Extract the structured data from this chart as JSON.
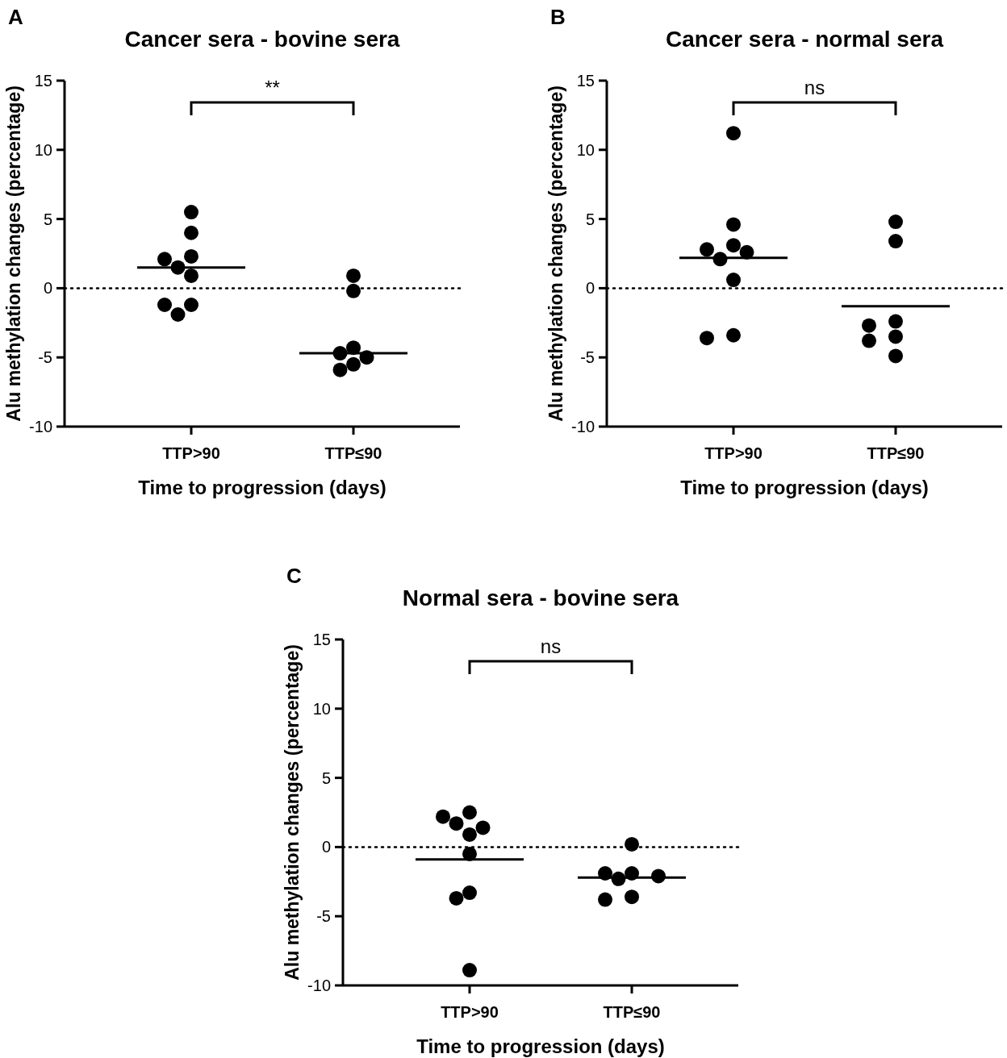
{
  "chart_data": [
    {
      "type": "scatter",
      "title": "Cancer sera - bovine sera",
      "xlabel": "Time to progression (days)",
      "ylabel": "Alu methylation changes (percentage)",
      "categories": [
        "TTP>90",
        "TTP≤90"
      ],
      "ylim": [
        -10,
        15
      ],
      "yticks": [
        -10,
        -5,
        0,
        5,
        10,
        15
      ],
      "grid": false,
      "annotations": [
        "A",
        "**"
      ],
      "ref_lines": [
        {
          "axis": "y",
          "value": 0,
          "line_style": "dotted",
          "color": "#000000"
        },
        {
          "axis": "y",
          "value": 1.5,
          "line_style": "solid",
          "color": "#000000"
        },
        {
          "axis": "y",
          "value": -4.7,
          "line_style": "solid",
          "color": "#000000"
        }
      ],
      "series": [
        {
          "type": "scatter",
          "marker": "circle",
          "color": "#000000",
          "x": [
            "TTP>90",
            "TTP>90",
            "TTP>90",
            "TTP>90",
            "TTP>90",
            "TTP>90",
            "TTP>90",
            "TTP>90",
            "TTP>90",
            "TTP≤90",
            "TTP≤90",
            "TTP≤90",
            "TTP≤90",
            "TTP≤90",
            "TTP≤90",
            "TTP≤90"
          ],
          "values": [
            5.5,
            4.0,
            2.1,
            2.3,
            1.5,
            0.9,
            -1.2,
            -1.2,
            -1.9,
            0.9,
            -0.2,
            -4.7,
            -5.0,
            -4.3,
            -5.9,
            -5.5
          ]
        }
      ]
    },
    {
      "type": "scatter",
      "title": "Cancer sera - normal sera",
      "xlabel": "Time to progression (days)",
      "ylabel": "Alu methylation changes (percentage)",
      "categories": [
        "TTP>90",
        "TTP≤90"
      ],
      "ylim": [
        -10,
        15
      ],
      "yticks": [
        -10,
        -5,
        0,
        5,
        10,
        15
      ],
      "grid": false,
      "annotations": [
        "B",
        "ns"
      ],
      "ref_lines": [
        {
          "axis": "y",
          "value": 0,
          "line_style": "dotted",
          "color": "#000000"
        },
        {
          "axis": "y",
          "value": 2.2,
          "line_style": "solid",
          "color": "#000000"
        },
        {
          "axis": "y",
          "value": -1.3,
          "line_style": "solid",
          "color": "#000000"
        }
      ],
      "series": [
        {
          "type": "scatter",
          "marker": "circle",
          "color": "#000000",
          "x": [
            "TTP>90",
            "TTP>90",
            "TTP>90",
            "TTP>90",
            "TTP>90",
            "TTP>90",
            "TTP>90",
            "TTP>90",
            "TTP>90",
            "TTP≤90",
            "TTP≤90",
            "TTP≤90",
            "TTP≤90",
            "TTP≤90",
            "TTP≤90",
            "TTP≤90"
          ],
          "values": [
            11.2,
            4.6,
            3.1,
            2.8,
            2.6,
            2.1,
            0.6,
            -3.6,
            -3.4,
            4.8,
            3.4,
            -2.4,
            -2.7,
            -3.5,
            -3.8,
            -4.9
          ]
        }
      ]
    },
    {
      "type": "scatter",
      "title": "Normal sera - bovine sera",
      "xlabel": "Time to progression (days)",
      "ylabel": "Alu methylation changes (percentage)",
      "categories": [
        "TTP>90",
        "TTP≤90"
      ],
      "ylim": [
        -10,
        15
      ],
      "yticks": [
        -10,
        -5,
        0,
        5,
        10,
        15
      ],
      "grid": false,
      "annotations": [
        "C",
        "ns"
      ],
      "ref_lines": [
        {
          "axis": "y",
          "value": 0,
          "line_style": "dotted",
          "color": "#000000"
        },
        {
          "axis": "y",
          "value": -0.9,
          "line_style": "solid",
          "color": "#000000"
        },
        {
          "axis": "y",
          "value": -2.2,
          "line_style": "solid",
          "color": "#000000"
        }
      ],
      "series": [
        {
          "type": "scatter",
          "marker": "circle",
          "color": "#000000",
          "x": [
            "TTP>90",
            "TTP>90",
            "TTP>90",
            "TTP>90",
            "TTP>90",
            "TTP>90",
            "TTP>90",
            "TTP>90",
            "TTP>90",
            "TTP≤90",
            "TTP≤90",
            "TTP≤90",
            "TTP≤90",
            "TTP≤90",
            "TTP≤90",
            "TTP≤90"
          ],
          "values": [
            2.2,
            2.5,
            0.9,
            1.7,
            1.4,
            -0.5,
            -3.3,
            -3.7,
            -8.9,
            0.2,
            -2.1,
            -1.9,
            -2.3,
            -1.9,
            -3.8,
            -3.6
          ]
        }
      ]
    }
  ]
}
